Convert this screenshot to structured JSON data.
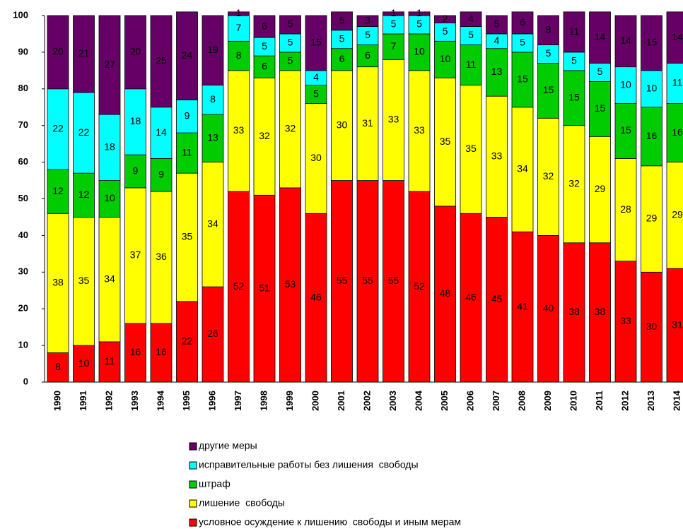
{
  "chart_data": {
    "type": "stacked_bar",
    "categories": [
      "1990",
      "1991",
      "1992",
      "1993",
      "1994",
      "1995",
      "1996",
      "1997",
      "1998",
      "1999",
      "2000",
      "2001",
      "2002",
      "2003",
      "2004",
      "2005",
      "2006",
      "2007",
      "2008",
      "2009",
      "2010",
      "2011",
      "2012",
      "2013",
      "2014"
    ],
    "series": [
      {
        "name": "условное осуждение к лишению  свободы и иным мерам",
        "color": "#ff0000",
        "values": [
          8,
          10,
          11,
          16,
          16,
          22,
          26,
          52,
          51,
          53,
          46,
          55,
          55,
          55,
          52,
          48,
          46,
          45,
          41,
          40,
          38,
          38,
          33,
          30,
          31
        ]
      },
      {
        "name": "лишение  свободы",
        "color": "#ffff00",
        "values": [
          38,
          35,
          34,
          37,
          36,
          35,
          34,
          33,
          32,
          32,
          30,
          30,
          31,
          33,
          33,
          35,
          35,
          33,
          34,
          32,
          32,
          29,
          28,
          29,
          29
        ]
      },
      {
        "name": "штраф",
        "color": "#00cc00",
        "values": [
          12,
          12,
          10,
          9,
          9,
          11,
          13,
          8,
          6,
          5,
          5,
          6,
          6,
          7,
          10,
          10,
          11,
          13,
          15,
          15,
          15,
          15,
          15,
          16,
          16
        ]
      },
      {
        "name": "исправительные работы без лишения  свободы",
        "color": "#00ffff",
        "values": [
          22,
          22,
          18,
          18,
          14,
          9,
          8,
          7,
          5,
          5,
          4,
          5,
          5,
          5,
          5,
          5,
          5,
          4,
          5,
          5,
          5,
          5,
          10,
          10,
          11
        ]
      },
      {
        "name": "другие меры",
        "color": "#660066",
        "values": [
          20,
          21,
          27,
          20,
          25,
          24,
          19,
          1,
          6,
          5,
          15,
          5,
          3,
          1,
          1,
          2,
          4,
          5,
          6,
          8,
          11,
          14,
          14,
          15,
          14
        ]
      }
    ],
    "ylim": [
      0,
      100
    ],
    "yticks": [
      0,
      10,
      20,
      30,
      40,
      50,
      60,
      70,
      80,
      90,
      100
    ]
  }
}
